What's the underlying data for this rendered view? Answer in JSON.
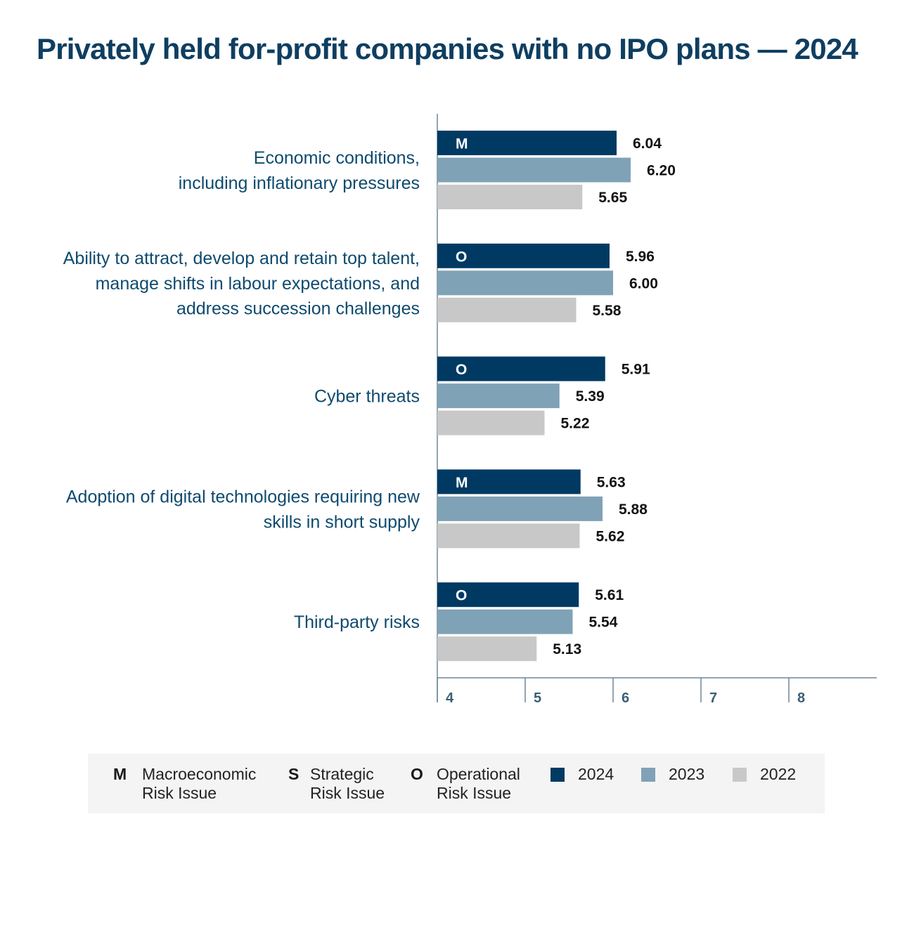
{
  "title": "Privately held for-profit companies with no IPO plans — 2024",
  "colors": {
    "2024": "#003a63",
    "2023": "#80a2b6",
    "2022": "#c8c8c8",
    "label": "#0e4a6e"
  },
  "chart_data": {
    "type": "bar",
    "orientation": "horizontal",
    "xlim": [
      4,
      9
    ],
    "xticks": [
      "4",
      "5",
      "6",
      "7",
      "8"
    ],
    "series_names": [
      "2024",
      "2023",
      "2022"
    ],
    "categories": [
      {
        "lines": [
          "Economic conditions,",
          "including inflationary pressures"
        ],
        "code": "M",
        "values": [
          6.04,
          6.2,
          5.65
        ],
        "labels": [
          "6.04",
          "6.20",
          "5.65"
        ]
      },
      {
        "lines": [
          "Ability to attract, develop and retain top talent,",
          "manage shifts in labour expectations, and",
          "address succession challenges"
        ],
        "code": "O",
        "values": [
          5.96,
          6.0,
          5.58
        ],
        "labels": [
          "5.96",
          "6.00",
          "5.58"
        ]
      },
      {
        "lines": [
          "Cyber threats"
        ],
        "code": "O",
        "values": [
          5.91,
          5.39,
          5.22
        ],
        "labels": [
          "5.91",
          "5.39",
          "5.22"
        ]
      },
      {
        "lines": [
          "Adoption of digital technologies requiring new",
          "skills in short supply"
        ],
        "code": "M",
        "values": [
          5.63,
          5.88,
          5.62
        ],
        "labels": [
          "5.63",
          "5.88",
          "5.62"
        ]
      },
      {
        "lines": [
          "Third-party risks"
        ],
        "code": "O",
        "values": [
          5.61,
          5.54,
          5.13
        ],
        "labels": [
          "5.61",
          "5.54",
          "5.13"
        ]
      }
    ]
  },
  "legend": {
    "codes": [
      {
        "code": "M",
        "text": "Macroeconomic\nRisk Issue"
      },
      {
        "code": "S",
        "text": "Strategic\nRisk Issue"
      },
      {
        "code": "O",
        "text": "Operational\nRisk Issue"
      }
    ],
    "years": [
      "2024",
      "2023",
      "2022"
    ]
  }
}
